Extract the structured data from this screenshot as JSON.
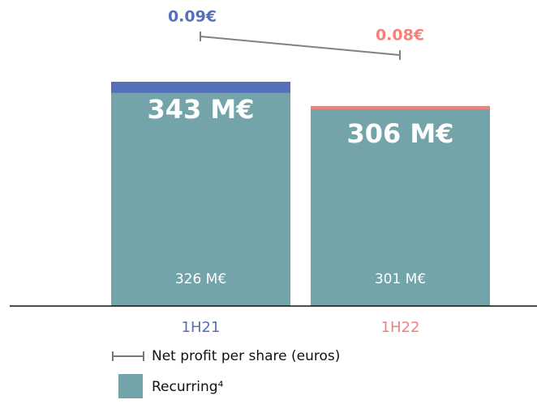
{
  "chart_data": {
    "type": "bar",
    "categories": [
      "1H21",
      "1H22"
    ],
    "category_colors": [
      "#5470b8",
      "#f77f7b"
    ],
    "series": [
      {
        "name": "Net profit",
        "colors": [
          "#5470b8",
          "#f77f7b"
        ],
        "values": [
          343,
          306
        ],
        "value_labels": [
          "343 M€",
          "306 M€"
        ]
      },
      {
        "name": "Recurring⁴",
        "color": "#72a4aa",
        "values": [
          326,
          301
        ],
        "value_labels": [
          "326 M€",
          "301 M€"
        ]
      },
      {
        "name": "Net profit per share (euros)",
        "color": "#808080",
        "values": [
          0.09,
          0.08
        ],
        "value_labels": [
          "0.09€",
          "0.08€"
        ]
      }
    ]
  }
}
